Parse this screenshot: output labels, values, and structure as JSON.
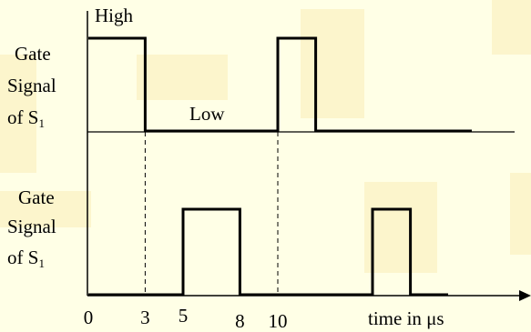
{
  "colors": {
    "background": "#ffffe6",
    "watermark": "#f5e39a",
    "line": "#000000"
  },
  "labels": {
    "high": "High",
    "low": "Low",
    "upper_gate": {
      "line1": "Gate",
      "line2": "Signal",
      "line3_prefix": "of S",
      "line3_sub": "1"
    },
    "lower_gate": {
      "line1": "Gate",
      "line2": "Signal",
      "line3_prefix": "of S",
      "line3_sub": "1"
    },
    "time_axis": "time in μs"
  },
  "time_ticks": [
    "0",
    "3",
    "5",
    "8",
    "10"
  ],
  "signals": {
    "upper": {
      "high_intervals_us": [
        [
          0,
          3
        ],
        [
          10,
          12
        ]
      ]
    },
    "lower": {
      "high_intervals_us": [
        [
          5,
          8
        ],
        [
          15,
          17
        ]
      ]
    }
  },
  "dashed_markers_us": [
    3,
    10
  ]
}
